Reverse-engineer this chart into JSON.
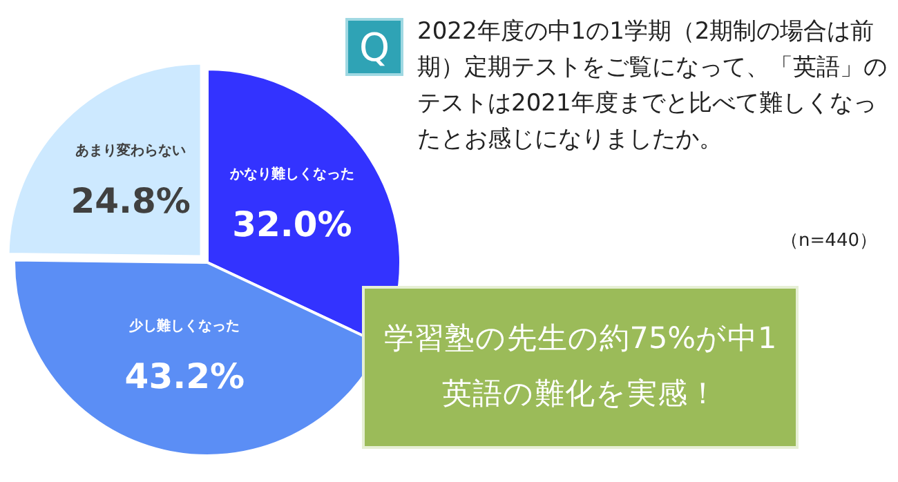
{
  "chart_data": {
    "type": "pie",
    "title": "2022年度の中1の1学期（2期制の場合は前期）定期テストをご覧になって、「英語」のテストは2021年度までと比べて難しくなったとお感じになりましたか。",
    "categories": [
      "かなり難しくなった",
      "少し難しくなった",
      "あまり変わらない"
    ],
    "values": [
      32.0,
      43.2,
      24.8
    ],
    "colors": [
      "#3333ff",
      "#5b8ef5",
      "#cde9ff"
    ],
    "value_labels": [
      "32.0%",
      "43.2%",
      "24.8%"
    ],
    "annotations": [
      "Q",
      "（n=440）",
      "学習塾の先生の約75%が中1英語の難化を実感！"
    ]
  }
}
